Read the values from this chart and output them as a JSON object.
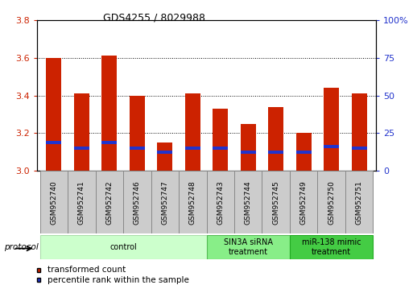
{
  "title": "GDS4255 / 8029988",
  "samples": [
    "GSM952740",
    "GSM952741",
    "GSM952742",
    "GSM952746",
    "GSM952747",
    "GSM952748",
    "GSM952743",
    "GSM952744",
    "GSM952745",
    "GSM952749",
    "GSM952750",
    "GSM952751"
  ],
  "bar_tops": [
    3.6,
    3.41,
    3.61,
    3.4,
    3.15,
    3.41,
    3.33,
    3.25,
    3.34,
    3.2,
    3.44,
    3.41
  ],
  "blue_vals": [
    3.15,
    3.12,
    3.15,
    3.12,
    3.1,
    3.12,
    3.12,
    3.1,
    3.1,
    3.1,
    3.13,
    3.12
  ],
  "bar_base": 3.0,
  "bar_color": "#cc2200",
  "blue_color": "#2233cc",
  "ylim_left": [
    3.0,
    3.8
  ],
  "ylim_right": [
    0,
    100
  ],
  "yticks_left": [
    3.0,
    3.2,
    3.4,
    3.6,
    3.8
  ],
  "yticks_right": [
    0,
    25,
    50,
    75,
    100
  ],
  "groups": [
    {
      "label": "control",
      "start": 0,
      "end": 6,
      "color": "#ccffcc",
      "edge_color": "#aaddaa"
    },
    {
      "label": "SIN3A siRNA\ntreatment",
      "start": 6,
      "end": 9,
      "color": "#88ee88",
      "edge_color": "#55bb55"
    },
    {
      "label": "miR-138 mimic\ntreatment",
      "start": 9,
      "end": 12,
      "color": "#44cc44",
      "edge_color": "#22aa22"
    }
  ],
  "protocol_label": "protocol",
  "legend_items": [
    {
      "label": "transformed count",
      "color": "#cc2200"
    },
    {
      "label": "percentile rank within the sample",
      "color": "#2233cc"
    }
  ],
  "bar_width": 0.55,
  "grid_color": "#000000",
  "tick_color_left": "#cc2200",
  "tick_color_right": "#2233cc",
  "label_box_color": "#cccccc",
  "label_box_edge": "#888888"
}
